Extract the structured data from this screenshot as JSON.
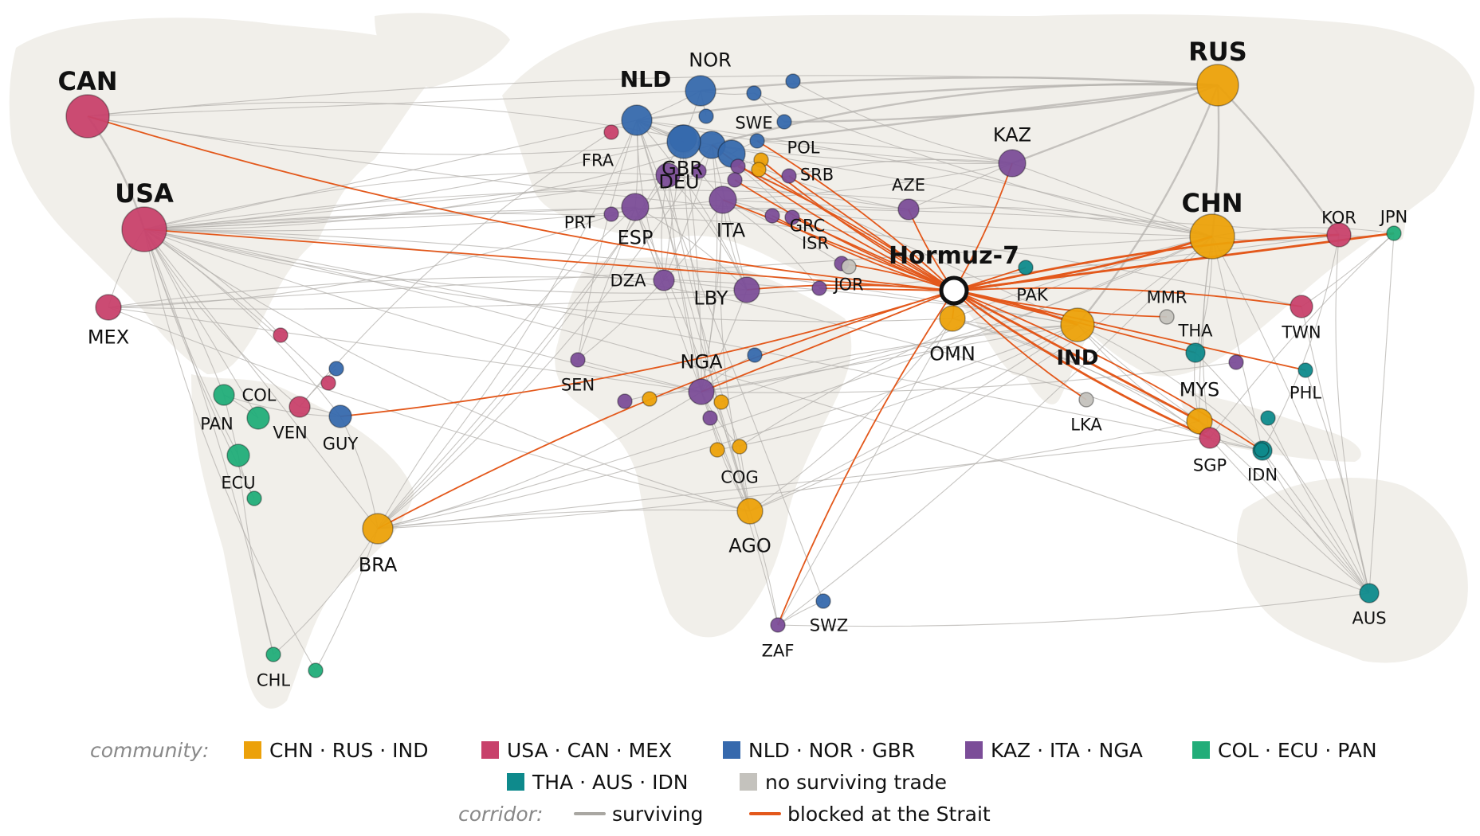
{
  "colors": {
    "background": "#ffffff",
    "land": "#f1efea",
    "surviving": "#b4b2ad",
    "blocked": "#e3581b",
    "communities": {
      "chn": "#eca10a",
      "usa": "#c8416b",
      "nld": "#3669ad",
      "kaz": "#7b4d98",
      "col": "#21ad79",
      "tha": "#0e8a8c",
      "none": "#c4c2bd"
    }
  },
  "hub": {
    "id": "Hormuz-7"
  },
  "nodes": [
    {
      "id": "CAN",
      "label": "CAN",
      "c": "usa",
      "size": 3
    },
    {
      "id": "USA",
      "label": "USA",
      "c": "usa",
      "size": 3
    },
    {
      "id": "MEX",
      "label": "MEX",
      "c": "usa",
      "size": 2
    },
    {
      "id": "RUS",
      "label": "RUS",
      "c": "chn",
      "size": 3
    },
    {
      "id": "CHN",
      "label": "CHN",
      "c": "chn",
      "size": 3
    },
    {
      "id": "IND",
      "label": "IND",
      "c": "chn",
      "size": 3
    },
    {
      "id": "KOR",
      "label": "KOR",
      "c": "usa",
      "size": 2
    },
    {
      "id": "JPN",
      "label": "JPN",
      "c": "col",
      "size": 1
    },
    {
      "id": "TWN",
      "label": "TWN",
      "c": "usa",
      "size": 2
    },
    {
      "id": "PHL",
      "label": "PHL",
      "c": "tha",
      "size": 1
    },
    {
      "id": "MMR",
      "label": "MMR",
      "c": "none",
      "size": 1
    },
    {
      "id": "THA",
      "label": "THA",
      "c": "tha",
      "size": 2
    },
    {
      "id": "MYS",
      "label": "MYS",
      "c": "chn",
      "size": 2
    },
    {
      "id": "SGP",
      "label": "SGP",
      "c": "usa",
      "size": 2
    },
    {
      "id": "IDN",
      "label": "IDN",
      "c": "tha",
      "size": 2
    },
    {
      "id": "AUS",
      "label": "AUS",
      "c": "tha",
      "size": 2
    },
    {
      "id": "LKA",
      "label": "LKA",
      "c": "none",
      "size": 1
    },
    {
      "id": "PAK",
      "label": "PAK",
      "c": "tha",
      "size": 1
    },
    {
      "id": "OMN",
      "label": "OMN",
      "c": "chn",
      "size": 2
    },
    {
      "id": "KAZ",
      "label": "KAZ",
      "c": "kaz",
      "size": 2
    },
    {
      "id": "AZE",
      "label": "AZE",
      "c": "kaz",
      "size": 2
    },
    {
      "id": "NLD",
      "label": "NLD",
      "c": "nld",
      "size": 3
    },
    {
      "id": "NOR",
      "label": "NOR",
      "c": "nld",
      "size": 2
    },
    {
      "id": "GBR",
      "label": "GBR",
      "c": "nld",
      "size": 2
    },
    {
      "id": "SWE",
      "label": "SWE",
      "c": "nld",
      "size": 1
    },
    {
      "id": "POL",
      "label": "POL",
      "c": "nld",
      "size": 1
    },
    {
      "id": "DEU",
      "label": "DEU",
      "c": "nld",
      "size": 2
    },
    {
      "id": "FRA",
      "label": "FRA",
      "c": "kaz",
      "size": 2
    },
    {
      "id": "PRT",
      "label": "PRT",
      "c": "kaz",
      "size": 1
    },
    {
      "id": "ESP",
      "label": "ESP",
      "c": "kaz",
      "size": 2
    },
    {
      "id": "ITA",
      "label": "ITA",
      "c": "kaz",
      "size": 2
    },
    {
      "id": "SRB",
      "label": "SRB",
      "c": "kaz",
      "size": 1
    },
    {
      "id": "GRC",
      "label": "GRC",
      "c": "kaz",
      "size": 1
    },
    {
      "id": "ISR",
      "label": "ISR",
      "c": "kaz",
      "size": 1
    },
    {
      "id": "JOR",
      "label": "JOR",
      "c": "kaz",
      "size": 1
    },
    {
      "id": "DZA",
      "label": "DZA",
      "c": "kaz",
      "size": 2
    },
    {
      "id": "LBY",
      "label": "LBY",
      "c": "kaz",
      "size": 2
    },
    {
      "id": "NGA",
      "label": "NGA",
      "c": "kaz",
      "size": 2
    },
    {
      "id": "SEN",
      "label": "SEN",
      "c": "kaz",
      "size": 1
    },
    {
      "id": "COG",
      "label": "COG",
      "c": "chn",
      "size": 1
    },
    {
      "id": "AGO",
      "label": "AGO",
      "c": "chn",
      "size": 2
    },
    {
      "id": "ZAF",
      "label": "ZAF",
      "c": "kaz",
      "size": 1
    },
    {
      "id": "SWZ",
      "label": "SWZ",
      "c": "nld",
      "size": 1
    },
    {
      "id": "BRA",
      "label": "BRA",
      "c": "chn",
      "size": 2
    },
    {
      "id": "GUY",
      "label": "GUY",
      "c": "nld",
      "size": 2
    },
    {
      "id": "VEN",
      "label": "VEN",
      "c": "usa",
      "size": 2
    },
    {
      "id": "COL",
      "label": "COL",
      "c": "col",
      "size": 2
    },
    {
      "id": "PAN",
      "label": "PAN",
      "c": "col",
      "size": 2
    },
    {
      "id": "ECU",
      "label": "ECU",
      "c": "col",
      "size": 2
    },
    {
      "id": "CHL",
      "label": "CHL",
      "c": "col",
      "size": 1
    },
    {
      "id": "u1",
      "label": "",
      "c": "usa",
      "size": 1
    },
    {
      "id": "u2",
      "label": "",
      "c": "usa",
      "size": 1
    },
    {
      "id": "u3",
      "label": "",
      "c": "nld",
      "size": 1
    },
    {
      "id": "u4",
      "label": "",
      "c": "usa",
      "size": 1
    },
    {
      "id": "u5",
      "label": "",
      "c": "nld",
      "size": 1
    },
    {
      "id": "u6",
      "label": "",
      "c": "nld",
      "size": 1
    },
    {
      "id": "u7",
      "label": "",
      "c": "nld",
      "size": 1
    },
    {
      "id": "u8",
      "label": "",
      "c": "nld",
      "size": 2
    },
    {
      "id": "u9",
      "label": "",
      "c": "nld",
      "size": 3
    },
    {
      "id": "u10",
      "label": "",
      "c": "kaz",
      "size": 1
    },
    {
      "id": "u11",
      "label": "",
      "c": "kaz",
      "size": 1
    },
    {
      "id": "u12",
      "label": "",
      "c": "chn",
      "size": 1
    },
    {
      "id": "u13",
      "label": "",
      "c": "chn",
      "size": 1
    },
    {
      "id": "u14",
      "label": "",
      "c": "kaz",
      "size": 1
    },
    {
      "id": "u15",
      "label": "",
      "c": "kaz",
      "size": 1
    },
    {
      "id": "u16",
      "label": "",
      "c": "kaz",
      "size": 1
    },
    {
      "id": "u17",
      "label": "",
      "c": "nld",
      "size": 1
    },
    {
      "id": "u18",
      "label": "",
      "c": "kaz",
      "size": 1
    },
    {
      "id": "u19",
      "label": "",
      "c": "chn",
      "size": 1
    },
    {
      "id": "u20",
      "label": "",
      "c": "chn",
      "size": 1
    },
    {
      "id": "u21",
      "label": "",
      "c": "chn",
      "size": 1
    },
    {
      "id": "u22",
      "label": "",
      "c": "kaz",
      "size": 1
    },
    {
      "id": "u23",
      "label": "",
      "c": "none",
      "size": 1
    },
    {
      "id": "u24",
      "label": "",
      "c": "tha",
      "size": 1
    },
    {
      "id": "u25",
      "label": "",
      "c": "tha",
      "size": 1
    },
    {
      "id": "u26",
      "label": "",
      "c": "col",
      "size": 1
    },
    {
      "id": "u27",
      "label": "",
      "c": "col",
      "size": 1
    }
  ],
  "blocked_edges": [
    "CAN",
    "USA",
    "BRA",
    "GUY",
    "NGA",
    "ZAF",
    "KOR",
    "JPN",
    "CHN",
    "TWN",
    "PHL",
    "MMR",
    "IND",
    "MYS",
    "SGP",
    "IDN",
    "THA",
    "LKA",
    "OMN",
    "PAK",
    "KAZ",
    "AZE",
    "JOR",
    "ISR",
    "GRC",
    "SRB",
    "POL",
    "DEU",
    "ITA",
    "LBY",
    "u12",
    "u13",
    "u14",
    "u15",
    "u16"
  ],
  "surviving_edges": [
    [
      "CAN",
      "USA"
    ],
    [
      "CAN",
      "RUS"
    ],
    [
      "CAN",
      "NOR"
    ],
    [
      "CAN",
      "CHN"
    ],
    [
      "USA",
      "MEX"
    ],
    [
      "USA",
      "CHN"
    ],
    [
      "USA",
      "KOR"
    ],
    [
      "USA",
      "NLD"
    ],
    [
      "USA",
      "GBR"
    ],
    [
      "USA",
      "DEU"
    ],
    [
      "USA",
      "FRA"
    ],
    [
      "USA",
      "COL"
    ],
    [
      "USA",
      "PAN"
    ],
    [
      "USA",
      "ECU"
    ],
    [
      "USA",
      "VEN"
    ],
    [
      "USA",
      "GUY"
    ],
    [
      "USA",
      "CHL"
    ],
    [
      "USA",
      "BRA"
    ],
    [
      "USA",
      "NGA"
    ],
    [
      "USA",
      "AGO"
    ],
    [
      "USA",
      "SGP"
    ],
    [
      "USA",
      "IND"
    ],
    [
      "USA",
      "ESP"
    ],
    [
      "USA",
      "ITA"
    ],
    [
      "USA",
      "LBY"
    ],
    [
      "USA",
      "TWN"
    ],
    [
      "USA",
      "AUS"
    ],
    [
      "USA",
      "IDN"
    ],
    [
      "USA",
      "u26"
    ],
    [
      "USA",
      "u27"
    ],
    [
      "USA",
      "u1"
    ],
    [
      "USA",
      "u2"
    ],
    [
      "MEX",
      "CHN"
    ],
    [
      "MEX",
      "KOR"
    ],
    [
      "MEX",
      "ESP"
    ],
    [
      "MEX",
      "IND"
    ],
    [
      "RUS",
      "CHN"
    ],
    [
      "RUS",
      "KAZ"
    ],
    [
      "RUS",
      "NLD"
    ],
    [
      "RUS",
      "DEU"
    ],
    [
      "RUS",
      "IND"
    ],
    [
      "RUS",
      "KOR"
    ],
    [
      "RUS",
      "POL"
    ],
    [
      "RUS",
      "NOR"
    ],
    [
      "CHN",
      "KOR"
    ],
    [
      "CHN",
      "JPN"
    ],
    [
      "CHN",
      "AUS"
    ],
    [
      "CHN",
      "IDN"
    ],
    [
      "CHN",
      "MYS"
    ],
    [
      "CHN",
      "SGP"
    ],
    [
      "CHN",
      "AGO"
    ],
    [
      "CHN",
      "BRA"
    ],
    [
      "CHN",
      "KAZ"
    ],
    [
      "CHN",
      "OMN"
    ],
    [
      "CHN",
      "COG"
    ],
    [
      "CHN",
      "NGA"
    ],
    [
      "CHN",
      "SWE"
    ],
    [
      "CHN",
      "DEU"
    ],
    [
      "CHN",
      "NLD"
    ],
    [
      "CHN",
      "AZE"
    ],
    [
      "CHN",
      "THA"
    ],
    [
      "CHN",
      "ZAF"
    ],
    [
      "JPN",
      "AUS"
    ],
    [
      "JPN",
      "SGP"
    ],
    [
      "KOR",
      "AUS"
    ],
    [
      "KOR",
      "IDN"
    ],
    [
      "IND",
      "AGO"
    ],
    [
      "IND",
      "NGA"
    ],
    [
      "IND",
      "MYS"
    ],
    [
      "IND",
      "SGP"
    ],
    [
      "IND",
      "IDN"
    ],
    [
      "IND",
      "BRA"
    ],
    [
      "IND",
      "NLD"
    ],
    [
      "IND",
      "u19"
    ],
    [
      "IND",
      "u20"
    ],
    [
      "IND",
      "u21"
    ],
    [
      "AUS",
      "SGP"
    ],
    [
      "AUS",
      "IDN"
    ],
    [
      "AUS",
      "MYS"
    ],
    [
      "AUS",
      "THA"
    ],
    [
      "AUS",
      "u25"
    ],
    [
      "AUS",
      "u24"
    ],
    [
      "NLD",
      "GBR"
    ],
    [
      "NLD",
      "NOR"
    ],
    [
      "NLD",
      "DEU"
    ],
    [
      "NLD",
      "BRA"
    ],
    [
      "NLD",
      "NGA"
    ],
    [
      "NLD",
      "AGO"
    ],
    [
      "NLD",
      "SEN"
    ],
    [
      "NLD",
      "DZA"
    ],
    [
      "NLD",
      "LBY"
    ],
    [
      "NLD",
      "ESP"
    ],
    [
      "NLD",
      "SWZ"
    ],
    [
      "NLD",
      "KAZ"
    ],
    [
      "NLD",
      "u9"
    ],
    [
      "GBR",
      "BRA"
    ],
    [
      "GBR",
      "NGA"
    ],
    [
      "GBR",
      "DZA"
    ],
    [
      "GBR",
      "NOR"
    ],
    [
      "GBR",
      "AGO"
    ],
    [
      "DEU",
      "BRA"
    ],
    [
      "DEU",
      "DZA"
    ],
    [
      "DEU",
      "LBY"
    ],
    [
      "DEU",
      "KAZ"
    ],
    [
      "DEU",
      "AZE"
    ],
    [
      "DEU",
      "NGA"
    ],
    [
      "DEU",
      "u8"
    ],
    [
      "ESP",
      "NGA"
    ],
    [
      "ESP",
      "DZA"
    ],
    [
      "ESP",
      "BRA"
    ],
    [
      "ESP",
      "LBY"
    ],
    [
      "ESP",
      "AGO"
    ],
    [
      "ESP",
      "SEN"
    ],
    [
      "FRA",
      "NGA"
    ],
    [
      "FRA",
      "DZA"
    ],
    [
      "FRA",
      "LBY"
    ],
    [
      "FRA",
      "BRA"
    ],
    [
      "FRA",
      "AZE"
    ],
    [
      "FRA",
      "COG"
    ],
    [
      "ITA",
      "LBY"
    ],
    [
      "ITA",
      "DZA"
    ],
    [
      "ITA",
      "NGA"
    ],
    [
      "ITA",
      "AZE"
    ],
    [
      "ITA",
      "KAZ"
    ],
    [
      "ITA",
      "AGO"
    ],
    [
      "ITA",
      "JOR"
    ],
    [
      "ITA",
      "ISR"
    ],
    [
      "ITA",
      "u10"
    ],
    [
      "NGA",
      "AGO"
    ],
    [
      "NGA",
      "COG"
    ],
    [
      "NGA",
      "BRA"
    ],
    [
      "NGA",
      "ZAF"
    ],
    [
      "NGA",
      "SEN"
    ],
    [
      "NGA",
      "u22"
    ],
    [
      "NGA",
      "u18"
    ],
    [
      "NGA",
      "u17"
    ],
    [
      "AGO",
      "ZAF"
    ],
    [
      "AGO",
      "COG"
    ],
    [
      "AGO",
      "BRA"
    ],
    [
      "AGO",
      "OMN"
    ],
    [
      "AGO",
      "u11"
    ],
    [
      "ZAF",
      "SWZ"
    ],
    [
      "ZAF",
      "OMN"
    ],
    [
      "ZAF",
      "AUS"
    ],
    [
      "BRA",
      "GUY"
    ],
    [
      "BRA",
      "CHL"
    ],
    [
      "BRA",
      "u27"
    ],
    [
      "BRA",
      "SGP"
    ],
    [
      "BRA",
      "MYS"
    ],
    [
      "GUY",
      "VEN"
    ],
    [
      "GUY",
      "COL"
    ],
    [
      "COL",
      "PAN"
    ],
    [
      "COL",
      "ECU"
    ],
    [
      "ECU",
      "CHL"
    ],
    [
      "ECU",
      "u26"
    ],
    [
      "VEN",
      "u4"
    ],
    [
      "VEN",
      "u3"
    ],
    [
      "KAZ",
      "AZE"
    ],
    [
      "KAZ",
      "POL"
    ],
    [
      "KAZ",
      "SRB"
    ],
    [
      "KAZ",
      "u5"
    ],
    [
      "LBY",
      "NGA"
    ],
    [
      "LBY",
      "DZA"
    ],
    [
      "SEN",
      "DZA"
    ],
    [
      "OMN",
      "IND"
    ],
    [
      "OMN",
      "SGP"
    ],
    [
      "OMN",
      "MYS"
    ],
    [
      "SGP",
      "IDN"
    ],
    [
      "SGP",
      "MYS"
    ],
    [
      "THA",
      "MYS"
    ],
    [
      "IDN",
      "MYS"
    ],
    [
      "PHL",
      "AUS"
    ],
    [
      "TWN",
      "AUS"
    ],
    [
      "TWN",
      "JPN"
    ],
    [
      "KOR",
      "JPN"
    ],
    [
      "SWE",
      "NOR"
    ],
    [
      "SWE",
      "u6"
    ],
    [
      "u7",
      "NOR"
    ],
    [
      "POL",
      "u8"
    ],
    [
      "GRC",
      "ITA"
    ],
    [
      "SRB",
      "u15"
    ],
    [
      "u14",
      "u16"
    ],
    [
      "USA",
      "u13"
    ],
    [
      "USA",
      "u12"
    ],
    [
      "CAN",
      "u9"
    ],
    [
      "CAN",
      "GBR"
    ],
    [
      "RUS",
      "u6"
    ],
    [
      "MEX",
      "NGA"
    ],
    [
      "MEX",
      "AGO"
    ],
    [
      "USA",
      "OMN"
    ]
  ],
  "legend": {
    "community_title": "community:",
    "communities": [
      {
        "c": "chn",
        "label": "CHN · RUS · IND"
      },
      {
        "c": "usa",
        "label": "USA · CAN · MEX"
      },
      {
        "c": "nld",
        "label": "NLD · NOR · GBR"
      },
      {
        "c": "kaz",
        "label": "KAZ · ITA · NGA"
      },
      {
        "c": "col",
        "label": "COL · ECU · PAN"
      },
      {
        "c": "tha",
        "label": "THA · AUS · IDN"
      },
      {
        "c": "none",
        "label": "no surviving trade"
      }
    ],
    "corridor_title": "corridor:",
    "corridors": [
      {
        "kind": "surviving",
        "label": "surviving"
      },
      {
        "kind": "blocked",
        "label": "blocked at the Strait"
      }
    ]
  }
}
